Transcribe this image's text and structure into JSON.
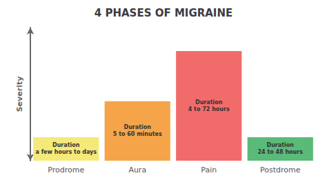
{
  "chart_data": {
    "type": "bar",
    "title": "4 PHASES OF MIGRAINE",
    "categories": [
      "Prodrome",
      "Aura",
      "Pain",
      "Postdrome"
    ],
    "values": [
      1.5,
      3.8,
      7.0,
      1.5
    ],
    "colors": [
      "#f5e97a",
      "#f5a44a",
      "#f26b6b",
      "#5aba78"
    ],
    "annotations": [
      "Duration\na few hours to days",
      "Duration\n5 to 60 minutes",
      "Duration\n4 to 72 hours",
      "Duration\n24 to 48 hours"
    ],
    "ylabel": "Severity",
    "ylim": [
      0,
      8.5
    ],
    "tick_labels": "x",
    "grid": false
  }
}
